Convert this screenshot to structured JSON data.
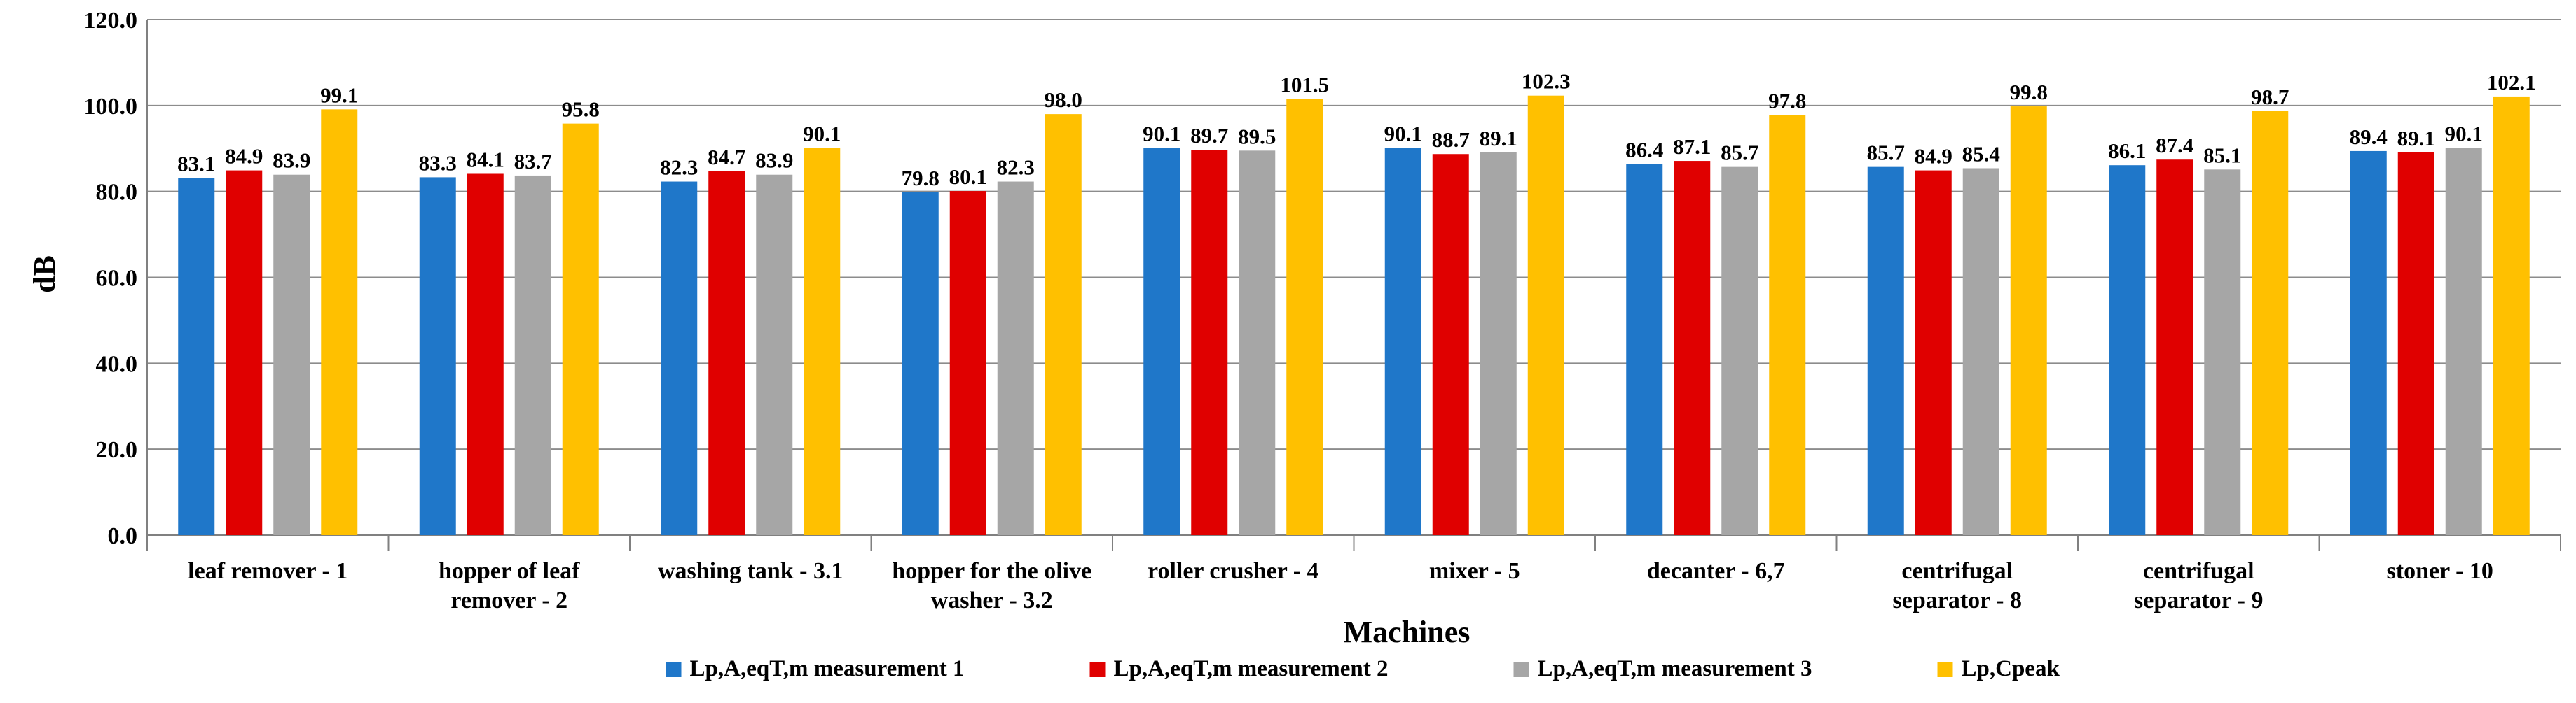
{
  "chart_data": {
    "type": "bar",
    "title": "",
    "xlabel": "Machines",
    "ylabel": "dB",
    "ylim": [
      0,
      120
    ],
    "yticks": [
      "0.0",
      "20.0",
      "40.0",
      "60.0",
      "80.0",
      "100.0",
      "120.0"
    ],
    "grid": true,
    "legend_position": "bottom",
    "categories": [
      [
        "leaf remover - 1"
      ],
      [
        "hopper of leaf",
        "remover - 2"
      ],
      [
        "washing tank - 3.1"
      ],
      [
        "hopper for the olive",
        "washer -  3.2"
      ],
      [
        "roller crusher - 4"
      ],
      [
        "mixer - 5"
      ],
      [
        "decanter - 6,7"
      ],
      [
        "centrifugal",
        "separator - 8"
      ],
      [
        "centrifugal",
        "separator - 9"
      ],
      [
        "stoner - 10"
      ]
    ],
    "series": [
      {
        "name": "Lp,A,eqT,m measurement 1",
        "color": "#1f77c9",
        "values": [
          83.1,
          83.3,
          82.3,
          79.8,
          90.1,
          90.1,
          86.4,
          85.7,
          86.1,
          89.4
        ]
      },
      {
        "name": "Lp,A,eqT,m measurement 2",
        "color": "#e00000",
        "values": [
          84.9,
          84.1,
          84.7,
          80.1,
          89.7,
          88.7,
          87.1,
          84.9,
          87.4,
          89.1
        ]
      },
      {
        "name": "Lp,A,eqT,m measurement 3",
        "color": "#a6a6a6",
        "values": [
          83.9,
          83.7,
          83.9,
          82.3,
          89.5,
          89.1,
          85.7,
          85.4,
          85.1,
          90.1
        ]
      },
      {
        "name": "Lp,Cpeak",
        "color": "#ffc000",
        "values": [
          99.1,
          95.8,
          90.1,
          98.0,
          101.5,
          102.3,
          97.8,
          99.8,
          98.7,
          102.1
        ]
      }
    ]
  }
}
